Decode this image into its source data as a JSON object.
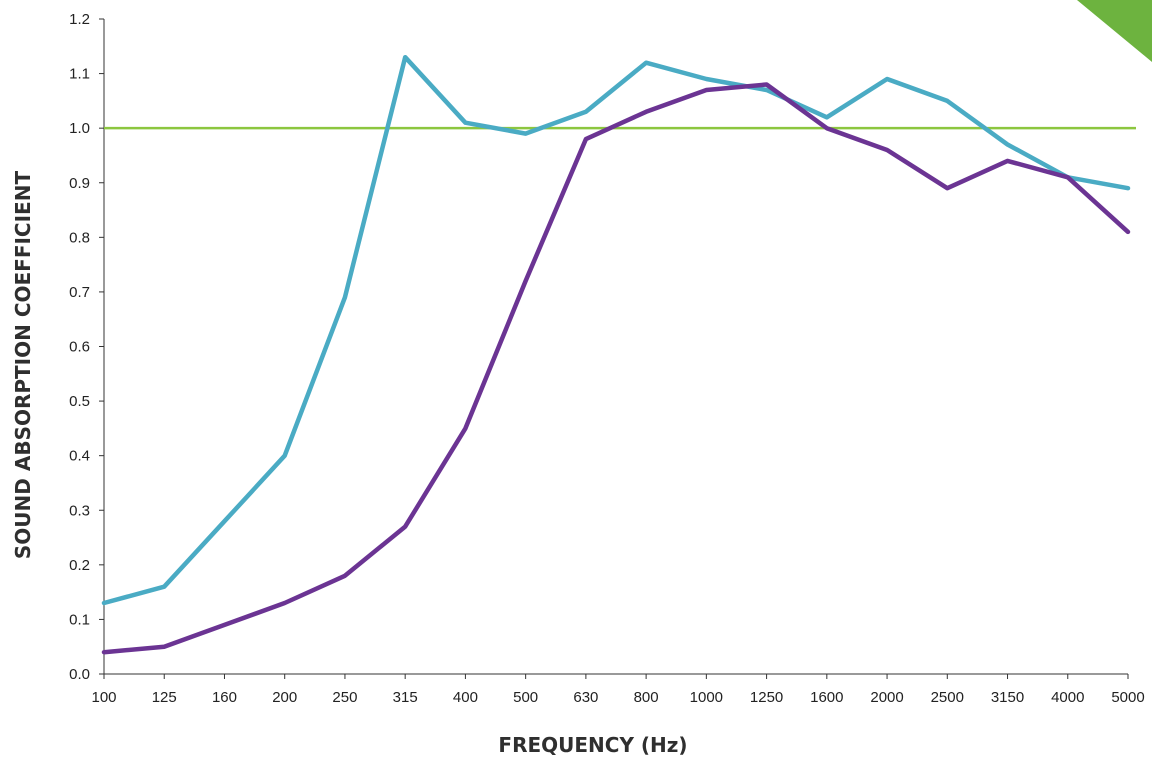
{
  "chart_data": {
    "type": "line",
    "title": "",
    "xlabel": "FREQUENCY (Hz)",
    "ylabel": "SOUND ABSORPTION COEFFICIENT",
    "categories": [
      "100",
      "125",
      "160",
      "200",
      "250",
      "315",
      "400",
      "500",
      "630",
      "800",
      "1000",
      "1250",
      "1600",
      "2000",
      "2500",
      "3150",
      "4000",
      "5000"
    ],
    "yticks": [
      "0.0",
      "0.1",
      "0.2",
      "0.3",
      "0.4",
      "0.5",
      "0.6",
      "0.7",
      "0.8",
      "0.9",
      "1.0",
      "1.1",
      "1.2"
    ],
    "ylim": [
      0,
      1.2
    ],
    "grid": false,
    "legend": "none",
    "reference_line": {
      "value": 1.0,
      "color": "#8cc63f"
    },
    "series": [
      {
        "color": "#4aabc4",
        "values": [
          0.13,
          0.16,
          0.28,
          0.4,
          0.69,
          1.13,
          1.01,
          0.99,
          1.03,
          1.12,
          1.09,
          1.07,
          1.02,
          1.09,
          1.05,
          0.97,
          0.91,
          0.89
        ]
      },
      {
        "color": "#6b3493",
        "values": [
          0.04,
          0.05,
          0.09,
          0.13,
          0.18,
          0.27,
          0.45,
          0.72,
          0.98,
          1.03,
          1.07,
          1.08,
          1.0,
          0.96,
          0.89,
          0.94,
          0.91,
          0.81
        ]
      }
    ],
    "corner_accent_color": "#6db33f"
  }
}
